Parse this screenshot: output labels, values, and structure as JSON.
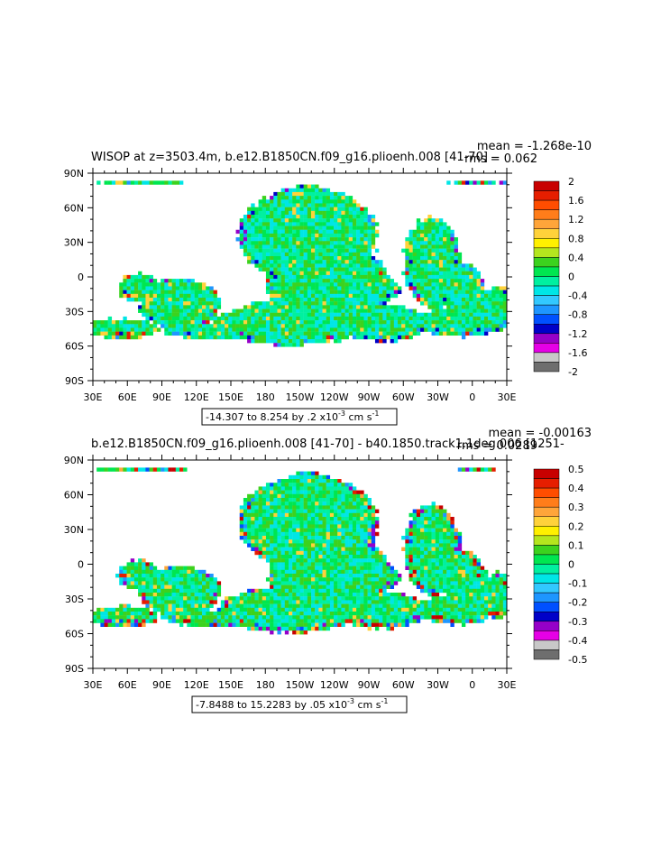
{
  "chart_data": [
    {
      "type": "heatmap",
      "title": "WISOP at z=3503.4m, b.e12.B1850CN.f09_g16.plioenh.008 [41-70]",
      "stat_mean": "mean = -1.268e-10",
      "stat_rms": "rms = 0.062",
      "x_ticks": [
        "30E",
        "60E",
        "90E",
        "120E",
        "150E",
        "180",
        "150W",
        "120W",
        "90W",
        "60W",
        "30W",
        "0",
        "30E"
      ],
      "y_ticks": [
        "90N",
        "60N",
        "30N",
        "0",
        "30S",
        "60S",
        "90S"
      ],
      "range_label": "-14.307 to 8.254 by .2 x10",
      "range_exp": "-3",
      "range_units": "cm s",
      "range_units_exp": "-1",
      "colorbar": {
        "labels": [
          "2",
          "1.6",
          "1.2",
          "0.8",
          "0.4",
          "0",
          "-0.4",
          "-0.8",
          "-1.2",
          "-1.6",
          "-2"
        ],
        "colors": [
          "#c80000",
          "#e61e00",
          "#ff4d00",
          "#ff7d1a",
          "#ffa53a",
          "#ffd23a",
          "#fff000",
          "#b4e61e",
          "#3cd21e",
          "#00e650",
          "#00f0a0",
          "#00e6e6",
          "#32c8ff",
          "#1e96ff",
          "#0050ff",
          "#0000c8",
          "#9600c8",
          "#e600e6",
          "#c8c8c8",
          "#6e6e6e"
        ]
      }
    },
    {
      "type": "heatmap",
      "title": "b.e12.B1850CN.f09_g16.plioenh.008 [41-70] - b40.1850.track1.1deg.006 [1251-",
      "stat_mean": "mean = -0.00163",
      "stat_rms": "rms = 0.0289",
      "x_ticks": [
        "30E",
        "60E",
        "90E",
        "120E",
        "150E",
        "180",
        "150W",
        "120W",
        "90W",
        "60W",
        "30W",
        "0",
        "30E"
      ],
      "y_ticks": [
        "90N",
        "60N",
        "30N",
        "0",
        "30S",
        "60S",
        "90S"
      ],
      "range_label": "-7.8488 to 15.2283 by .05 x10",
      "range_exp": "-3",
      "range_units": "cm s",
      "range_units_exp": "-1",
      "colorbar": {
        "labels": [
          "0.5",
          "0.4",
          "0.3",
          "0.2",
          "0.1",
          "0",
          "-0.1",
          "-0.2",
          "-0.3",
          "-0.4",
          "-0.5"
        ],
        "colors": [
          "#c80000",
          "#e61e00",
          "#ff4d00",
          "#ff7d1a",
          "#ffa53a",
          "#ffd23a",
          "#fff000",
          "#b4e61e",
          "#3cd21e",
          "#00e650",
          "#00f0a0",
          "#00e6e6",
          "#32c8ff",
          "#1e96ff",
          "#0050ff",
          "#0000c8",
          "#9600c8",
          "#e600e6",
          "#c8c8c8",
          "#6e6e6e"
        ]
      }
    }
  ]
}
